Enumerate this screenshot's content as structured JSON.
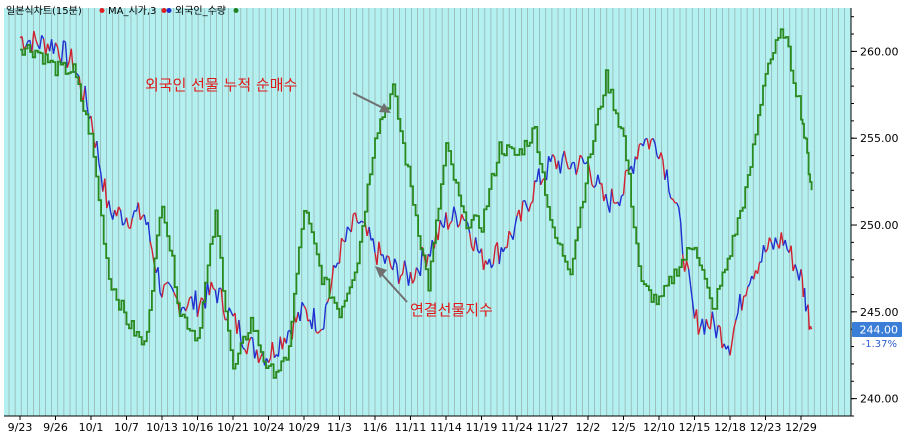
{
  "legend": {
    "title": "일본식차트(15분)",
    "items": [
      {
        "name": "MA_시가,3",
        "color": "#e02020"
      },
      {
        "name": "외국인_수량",
        "color": "#208020"
      }
    ]
  },
  "price_badge": {
    "value": "244.00",
    "change": "-1.37%"
  },
  "annotations": {
    "foreign": "외국인 선물 누적 순매수",
    "futures": "연결선물지수"
  },
  "colors": {
    "background": "#b4f0f0",
    "futures_line": "#d02030",
    "futures_line_alt": "#2030d0",
    "foreign_line": "#2a8a1e",
    "badge_bg": "#3a7ed8"
  },
  "chart_data": {
    "type": "line",
    "x_tick_labels": [
      "9/23",
      "9/26",
      "10/1",
      "10/7",
      "10/13",
      "10/16",
      "10/21",
      "10/24",
      "10/29",
      "11/3",
      "11/6",
      "11/11",
      "11/14",
      "11/19",
      "11/24",
      "11/27",
      "12/2",
      "12/5",
      "12/10",
      "12/15",
      "12/18",
      "12/23",
      "12/29"
    ],
    "y_ticks": [
      240,
      245,
      250,
      255,
      260
    ],
    "ylim": [
      239,
      262.5
    ],
    "series": [
      {
        "name": "연결선물지수",
        "x": [
          0,
          0.5,
          1,
          1.5,
          2,
          2.5,
          3,
          3.5,
          4,
          4.5,
          5,
          5.5,
          6,
          6.5,
          7,
          7.5,
          8,
          8.5,
          9,
          9.5,
          10,
          10.5,
          11,
          11.5,
          12,
          12.5,
          13,
          13.5,
          14,
          14.5,
          15,
          15.5,
          16,
          16.5,
          17,
          17.5,
          18,
          18.5,
          19,
          19.5,
          20,
          20.5,
          21,
          21.5,
          22,
          22.3
        ],
        "values": [
          260.8,
          260.5,
          260.4,
          259.3,
          256.2,
          250.8,
          250.5,
          250.6,
          246.2,
          245.5,
          245.5,
          246.3,
          244.5,
          243.0,
          242.5,
          243.8,
          245.0,
          244.3,
          248.4,
          250.3,
          248.5,
          247.5,
          247.0,
          248.5,
          250.2,
          250.7,
          248.0,
          248.5,
          249.9,
          252.2,
          253.6,
          253.5,
          253.5,
          251.2,
          252.0,
          255.0,
          254.6,
          251.0,
          244.5,
          244.3,
          243.2,
          247.0,
          248.5,
          249.2,
          247.0,
          244.0
        ]
      },
      {
        "name": "외국인 선물 누적 순매수",
        "x": [
          0,
          0.5,
          1,
          1.5,
          2,
          2.5,
          3,
          3.5,
          4,
          4.5,
          5,
          5.5,
          6,
          6.5,
          7,
          7.5,
          8,
          8.5,
          9,
          9.5,
          10,
          10.5,
          11,
          11.5,
          12,
          12.5,
          13,
          13.5,
          14,
          14.5,
          15,
          15.5,
          16,
          16.5,
          17,
          17.5,
          18,
          18.5,
          19,
          19.5,
          20,
          20.5,
          21,
          21.5,
          22,
          22.3
        ],
        "values": [
          260.3,
          260.0,
          259.0,
          258.9,
          255.0,
          247.0,
          244.5,
          243.0,
          251.5,
          245.0,
          243.5,
          250.5,
          241.5,
          244.5,
          241.5,
          242.0,
          251.0,
          247.0,
          245.0,
          248.0,
          255.3,
          257.8,
          252.2,
          246.5,
          254.5,
          250.3,
          250.0,
          254.5,
          254.0,
          255.5,
          249.5,
          247.5,
          253.5,
          258.5,
          255.0,
          246.5,
          245.5,
          247.5,
          249.0,
          245.0,
          248.5,
          252.5,
          259.0,
          261.2,
          256.5,
          252.0
        ]
      }
    ]
  }
}
